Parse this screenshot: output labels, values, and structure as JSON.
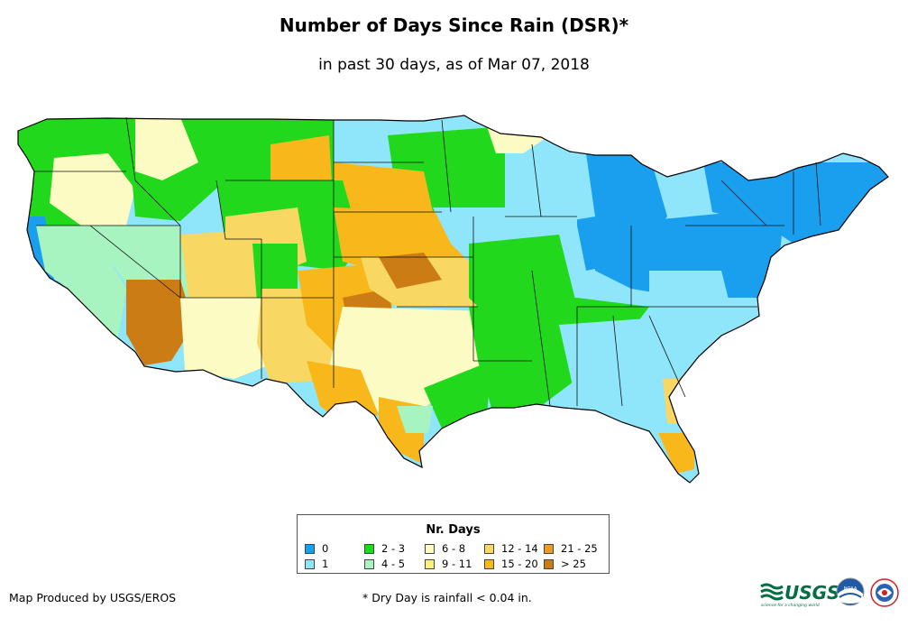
{
  "title": "Number of Days Since Rain (DSR)*",
  "subtitle": "in past 30 days, as of Mar 07, 2018",
  "legend": {
    "title": "Nr. Days",
    "items": [
      {
        "label": "0",
        "color": "#1a9fef"
      },
      {
        "label": "1",
        "color": "#8fe6fa"
      },
      {
        "label": "2 - 3",
        "color": "#22d81c"
      },
      {
        "label": "4 - 5",
        "color": "#a8f4c0"
      },
      {
        "label": "6 - 8",
        "color": "#fdfbc4"
      },
      {
        "label": "9 - 11",
        "color": "#fbf07c"
      },
      {
        "label": "12 - 14",
        "color": "#f8d862"
      },
      {
        "label": "15 - 20",
        "color": "#f8b81c"
      },
      {
        "label": "21 - 25",
        "color": "#ec9c22"
      },
      {
        "label": "> 25",
        "color": "#cc7c14"
      }
    ]
  },
  "footer": {
    "credit": "Map Produced by USGS/EROS",
    "note": "* Dry Day is rainfall < 0.04 in."
  },
  "logos": {
    "usgs": "USGS",
    "usgs_tagline": "science for a changing world",
    "noaa": "NOAA",
    "nws_icon": "nws-logo-icon"
  }
}
